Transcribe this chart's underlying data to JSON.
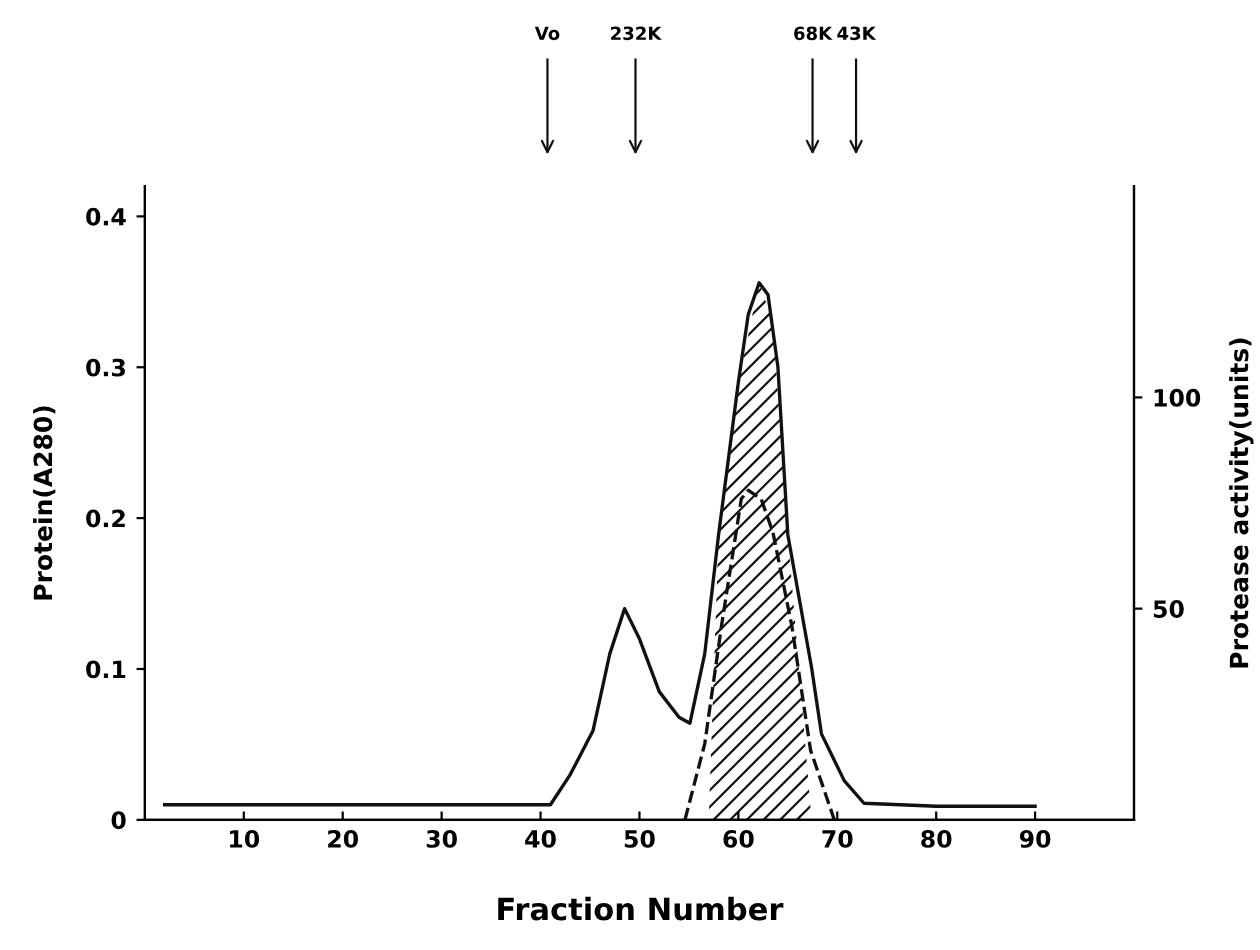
{
  "chart_data": {
    "type": "line",
    "xlabel": "Fraction Number",
    "ylabel": "Protein(A280)",
    "y2label": "Protease activity(units)",
    "xlim": [
      0,
      100
    ],
    "xticks": [
      10,
      20,
      30,
      40,
      50,
      60,
      70,
      80,
      90
    ],
    "ylim": [
      0,
      0.42
    ],
    "yticks": [
      0,
      0.1,
      0.2,
      0.3,
      0.4
    ],
    "y2lim": [
      0,
      150
    ],
    "y2ticks": [
      50,
      100
    ],
    "series": [
      {
        "color": "#111111",
        "line_style": "solid",
        "x": [
          2,
          20,
          41,
          43,
          45.3,
          47,
          48.5,
          50,
          52,
          54,
          55.1,
          56.6,
          58,
          60,
          61,
          62.1,
          63,
          64,
          65,
          67.4,
          68.4,
          70.7,
          72.7,
          80,
          90
        ],
        "values": [
          0.01,
          0.01,
          0.01,
          0.03,
          0.059,
          0.11,
          0.14,
          0.12,
          0.085,
          0.068,
          0.064,
          0.11,
          0.189,
          0.29,
          0.335,
          0.356,
          0.348,
          0.3,
          0.189,
          0.101,
          0.057,
          0.026,
          0.011,
          0.009,
          0.009
        ]
      },
      {
        "type": "area",
        "color": "#111111",
        "x": [
          57,
          58,
          60,
          62.1,
          63.5,
          65,
          67.4
        ],
        "values": [
          0.0,
          0.189,
          0.29,
          0.356,
          0.33,
          0.189,
          0.0
        ]
      },
      {
        "color": "#111111",
        "line_style": "dashed",
        "axis": "y2",
        "x": [
          54.6,
          56.6,
          58.3,
          60.3,
          61,
          62.3,
          63.5,
          65.4,
          67.3,
          69.7
        ],
        "values": [
          0,
          18,
          46,
          76,
          78,
          76,
          68,
          46,
          16.5,
          0
        ]
      }
    ],
    "annotations": [
      "Vo",
      "232K",
      "68K",
      "43K"
    ],
    "grid": false,
    "legend": false
  }
}
